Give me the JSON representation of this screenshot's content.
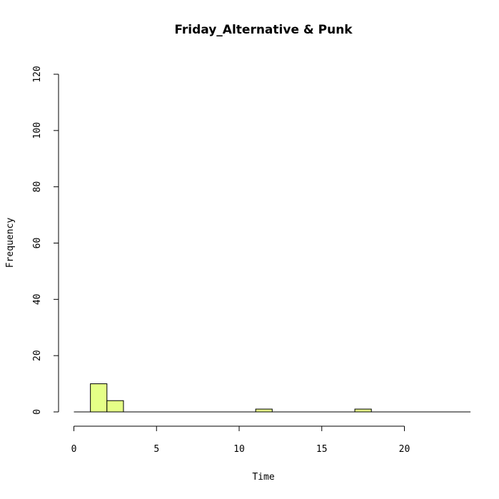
{
  "chart_data": {
    "type": "bar",
    "title": "Friday_Alternative & Punk",
    "xlabel": "Time",
    "ylabel": "Frequency",
    "bar_color": "#e5ff87",
    "xlim": [
      0,
      24
    ],
    "ylim": [
      0,
      120
    ],
    "xticks": [
      0,
      5,
      10,
      15,
      20
    ],
    "yticks": [
      0,
      20,
      40,
      60,
      80,
      100,
      120
    ],
    "bins": [
      {
        "x0": 1,
        "x1": 2,
        "count": 10
      },
      {
        "x0": 2,
        "x1": 3,
        "count": 4
      },
      {
        "x0": 11,
        "x1": 12,
        "count": 1
      },
      {
        "x0": 17,
        "x1": 18,
        "count": 1
      }
    ],
    "baseline_range": [
      0,
      24
    ],
    "grid": false
  }
}
